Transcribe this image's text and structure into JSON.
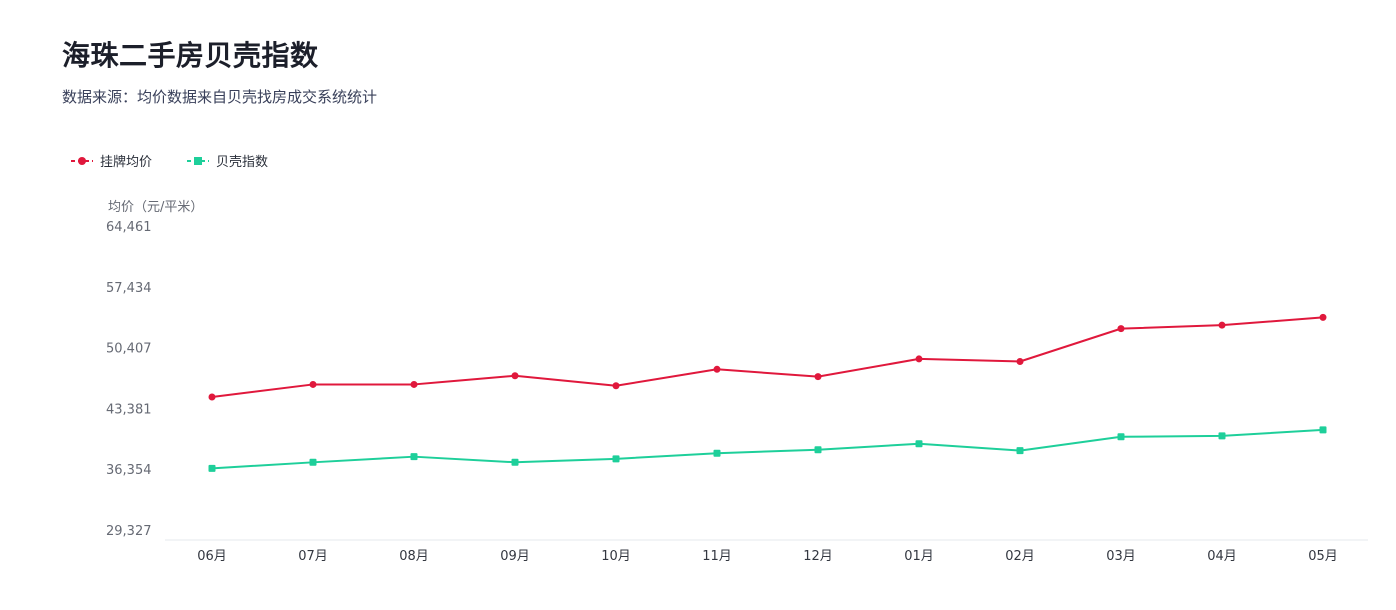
{
  "title": "海珠二手房贝壳指数",
  "subtitle": "数据来源：均价数据来自贝壳找房成交系统统计",
  "chart_data": {
    "type": "line",
    "title": "海珠二手房贝壳指数",
    "subtitle": "数据来源：均价数据来自贝壳找房成交系统统计",
    "xlabel": "",
    "ylabel": "均价（元/平米）",
    "categories": [
      "06月",
      "07月",
      "08月",
      "09月",
      "10月",
      "11月",
      "12月",
      "01月",
      "02月",
      "03月",
      "04月",
      "05月"
    ],
    "yticks": [
      "29,327",
      "36,354",
      "43,381",
      "50,407",
      "57,434",
      "64,461"
    ],
    "ylim": [
      29327,
      64461
    ],
    "grid": false,
    "legend_position": "top-left",
    "series": [
      {
        "name": "挂牌均价",
        "color": "#e0183c",
        "marker": "circle",
        "values": [
          44700,
          46150,
          46150,
          47150,
          46000,
          47900,
          47050,
          49100,
          48800,
          52600,
          53000,
          53900
        ]
      },
      {
        "name": "贝壳指数",
        "color": "#1ecf9a",
        "marker": "square",
        "values": [
          36450,
          37150,
          37800,
          37150,
          37550,
          38200,
          38600,
          39300,
          38500,
          40100,
          40200,
          40900
        ]
      }
    ]
  }
}
